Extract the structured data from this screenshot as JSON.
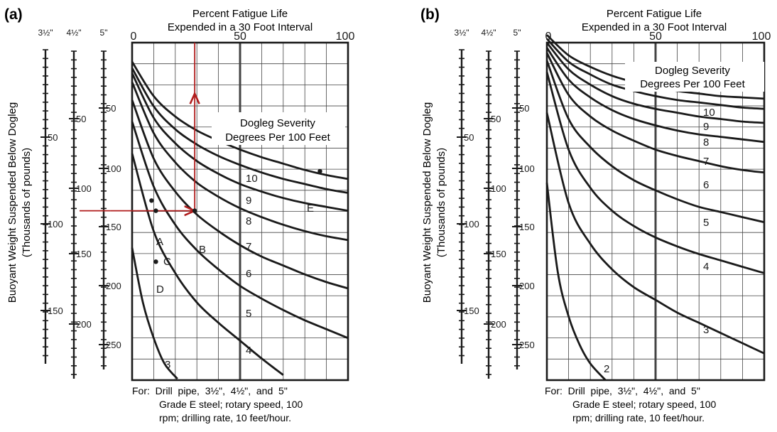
{
  "figure": {
    "description_lines": []
  },
  "colors": {
    "ink": "#1a1a1a",
    "grid": "#444444",
    "marker": "#b01c1c"
  },
  "chart_data": [
    {
      "type": "line",
      "panel_label": "(a)",
      "title_lines": [
        "Percent Fatigue Life",
        "Expended in a 30 Foot Interval"
      ],
      "ylabel_lines": [
        "Buoyant Weight Suspended Below Dogleg",
        "(Thousands of pounds)"
      ],
      "x_ticks": [
        "0",
        "50",
        "100"
      ],
      "xlim": [
        0,
        100
      ],
      "ylim": [
        20,
        285
      ],
      "y_axis": "5\" pipe scale, thousands of pounds (increasing downward)",
      "grid": true,
      "legend_lines": [
        "Dogleg Severity",
        "Degrees Per 100 Feet"
      ],
      "note_lines": [
        "For:  Drill  pipe,  3½\",  4½\",  and  5\"",
        "Grade E steel; rotary speed, 100",
        "rpm; drilling rate, 10 feet/hour."
      ],
      "scales": [
        {
          "label": "3½\"",
          "labels": [
            "50",
            "100",
            "150"
          ]
        },
        {
          "label": "4½\"",
          "labels": [
            "50",
            "100",
            "150",
            "200"
          ]
        },
        {
          "label": "5\"",
          "labels": [
            "50",
            "100",
            "150",
            "200",
            "250"
          ]
        }
      ],
      "series": [
        {
          "name": "3",
          "x": [
            0,
            5,
            10,
            15,
            21
          ],
          "y": [
            181,
            224,
            252,
            272,
            284
          ]
        },
        {
          "name": "4",
          "x": [
            0,
            10,
            20,
            30,
            40,
            50,
            60,
            70
          ],
          "y": [
            107,
            168,
            201,
            224,
            240,
            254,
            268,
            281
          ]
        },
        {
          "name": "5",
          "x": [
            0,
            10,
            20,
            30,
            40,
            50,
            60,
            70,
            80,
            90,
            100
          ],
          "y": [
            82,
            133,
            163,
            183,
            198,
            211,
            221,
            230,
            238,
            245,
            252
          ]
        },
        {
          "name": "6",
          "x": [
            0,
            10,
            20,
            30,
            40,
            50,
            60,
            70,
            80,
            90,
            100
          ],
          "y": [
            65,
            111,
            137,
            155,
            168,
            179,
            188,
            195,
            202,
            208,
            213
          ]
        },
        {
          "name": "7",
          "x": [
            0,
            10,
            20,
            30,
            40,
            50,
            60,
            70,
            80,
            90,
            100
          ],
          "y": [
            51,
            91,
            114,
            130,
            141,
            150,
            157,
            163,
            168,
            172,
            175
          ]
        },
        {
          "name": "8",
          "x": [
            0,
            10,
            20,
            30,
            40,
            50,
            60,
            70,
            80,
            90,
            100
          ],
          "y": [
            44,
            79,
            99,
            113,
            123,
            131,
            137,
            142,
            146,
            149,
            152
          ]
        },
        {
          "name": "9",
          "x": [
            0,
            10,
            20,
            30,
            40,
            50,
            60,
            70,
            80,
            90,
            100
          ],
          "y": [
            40,
            70,
            88,
            100,
            109,
            116,
            122,
            127,
            131,
            135,
            138
          ]
        },
        {
          "name": "10",
          "x": [
            0,
            10,
            20,
            30,
            40,
            50,
            60,
            70,
            80,
            90,
            100
          ],
          "y": [
            35,
            62,
            78,
            89,
            97,
            104,
            110,
            115,
            120,
            124,
            127
          ]
        }
      ],
      "points": [
        {
          "label": "A",
          "x": 9,
          "y": 144
        },
        {
          "label": "B",
          "x": 29,
          "y": 152
        },
        {
          "label": "C",
          "x": 11,
          "y": 152
        },
        {
          "label": "D",
          "x": 11,
          "y": 192
        },
        {
          "label": "E",
          "x": 87,
          "y": 121
        }
      ],
      "arrows": [
        {
          "from": [
            -10,
            152
          ],
          "to": [
            29,
            152
          ]
        },
        {
          "from": [
            29,
            152
          ],
          "to": [
            29,
            60
          ]
        }
      ],
      "red_line_top": [
        29,
        20
      ]
    },
    {
      "type": "line",
      "panel_label": "(b)",
      "title_lines": [
        "Percent Fatigue Life",
        "Expended in a 30 Foot Interval"
      ],
      "ylabel_lines": [
        "Buoyant Weight Suspended Below Dogleg",
        "(Thousands of pounds)"
      ],
      "x_ticks": [
        "0",
        "50",
        "100"
      ],
      "xlim": [
        0,
        100
      ],
      "ylim": [
        20,
        285
      ],
      "y_axis": "5\" pipe scale, thousands of pounds (increasing downward)",
      "grid": true,
      "legend_lines": [
        "Dogleg Severity",
        "Degrees Per 100 Feet"
      ],
      "note_lines": [
        "For:  Drill  pipe,  3½\",  4½\",  and  5\"",
        "Grade E steel; rotary speed, 100",
        "rpm; drilling rate, 10 feet/hour."
      ],
      "scales": [
        {
          "label": "3½\"",
          "labels": [
            "50",
            "100",
            "150"
          ]
        },
        {
          "label": "4½\"",
          "labels": [
            "50",
            "100",
            "150",
            "200"
          ]
        },
        {
          "label": "5\"",
          "labels": [
            "50",
            "100",
            "150",
            "200",
            "250"
          ]
        }
      ],
      "series": [
        {
          "name": "2",
          "x": [
            0,
            5,
            10,
            15,
            20,
            27
          ],
          "y": [
            130,
            200,
            235,
            257,
            272,
            285
          ]
        },
        {
          "name": "3",
          "x": [
            0,
            10,
            20,
            30,
            40,
            50,
            60,
            70,
            80,
            90,
            100
          ],
          "y": [
            75,
            146,
            178,
            198,
            212,
            222,
            232,
            240,
            248,
            256,
            264
          ]
        },
        {
          "name": "4",
          "x": [
            0,
            10,
            20,
            30,
            40,
            50,
            60,
            70,
            80,
            90,
            100
          ],
          "y": [
            43,
            104,
            134,
            152,
            164,
            173,
            180,
            186,
            191,
            196,
            201
          ]
        },
        {
          "name": "5",
          "x": [
            0,
            10,
            20,
            30,
            40,
            50,
            60,
            70,
            80,
            90,
            100
          ],
          "y": [
            34,
            80,
            102,
            117,
            128,
            136,
            143,
            149,
            153,
            157,
            161
          ]
        },
        {
          "name": "6",
          "x": [
            0,
            10,
            20,
            30,
            40,
            50,
            60,
            70,
            80,
            90,
            100
          ],
          "y": [
            28,
            61,
            78,
            89,
            97,
            104,
            109,
            113,
            117,
            120,
            122
          ]
        },
        {
          "name": "7",
          "x": [
            0,
            10,
            20,
            30,
            40,
            50,
            60,
            70,
            80,
            90,
            100
          ],
          "y": [
            24,
            49,
            63,
            73,
            80,
            85,
            89,
            92,
            94,
            96,
            98
          ]
        },
        {
          "name": "8",
          "x": [
            0,
            10,
            20,
            30,
            40,
            50,
            60,
            70,
            80,
            90,
            100
          ],
          "y": [
            20,
            41,
            53,
            62,
            68,
            72,
            75,
            78,
            80,
            82,
            83
          ]
        },
        {
          "name": "9",
          "x": [
            0,
            10,
            20,
            30,
            40,
            50,
            60,
            70,
            80,
            90,
            100
          ],
          "y": [
            17,
            35,
            45,
            53,
            58,
            62,
            65,
            67,
            69,
            71,
            72
          ]
        },
        {
          "name": "10",
          "x": [
            0,
            10,
            20,
            30,
            40,
            50,
            60,
            70,
            80,
            90,
            100
          ],
          "y": [
            14,
            30,
            39,
            46,
            51,
            55,
            58,
            60,
            62,
            63,
            64
          ]
        }
      ],
      "points": [],
      "arrows": []
    }
  ]
}
